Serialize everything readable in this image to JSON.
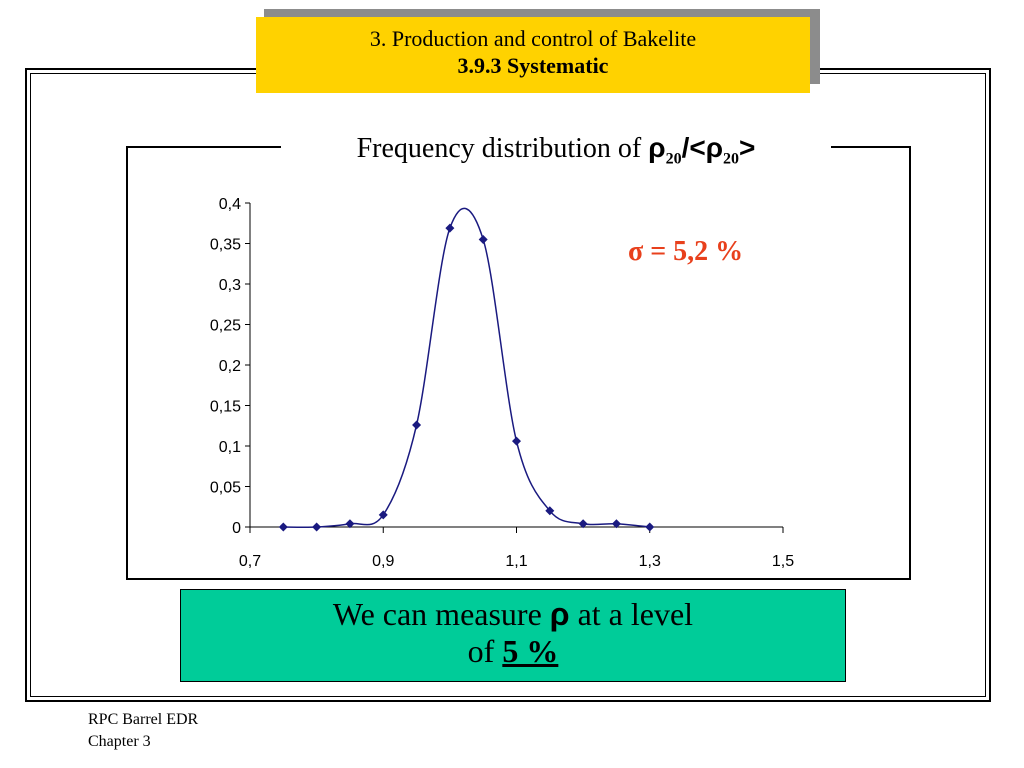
{
  "header": {
    "title_line1": "3. Production and control of  Bakelite",
    "title_line2": "3.9.3 Systematic"
  },
  "chart_title": {
    "prefix": "Frequency distribution of ",
    "rho": "ρ",
    "sub": "20",
    "slash": "/<",
    "rho2": "ρ",
    "sub2": "20",
    "suffix": ">"
  },
  "annotation": "σ = 5,2 %",
  "note": {
    "line1_prefix": "We can measure ",
    "rho": "ρ",
    "line1_suffix": " at a level",
    "line2_prefix": "of  ",
    "value": "5 %"
  },
  "footer": {
    "line1": "RPC Barrel EDR",
    "line2": "Chapter 3"
  },
  "colors": {
    "title_bg": "#ffd200",
    "note_bg": "#00cc99",
    "series": "#1a1a80",
    "annotation": "#e8401c"
  },
  "chart_data": {
    "type": "scatter",
    "title": "Frequency distribution of ρ20/<ρ20>",
    "xlim": [
      0.7,
      1.5
    ],
    "ylim": [
      0,
      0.4
    ],
    "x_ticks": [
      0.7,
      0.9,
      1.1,
      1.3,
      1.5
    ],
    "x_tick_labels": [
      "0,7",
      "0,9",
      "1,1",
      "1,3",
      "1,5"
    ],
    "y_ticks": [
      0,
      0.05,
      0.1,
      0.15,
      0.2,
      0.25,
      0.3,
      0.35,
      0.4
    ],
    "y_tick_labels": [
      "0",
      "0,05",
      "0,1",
      "0,15",
      "0,2",
      "0,25",
      "0,3",
      "0,35",
      "0,4"
    ],
    "grid": false,
    "smooth_line": true,
    "series": [
      {
        "x": [
          0.75,
          0.8,
          0.85,
          0.9,
          0.95,
          1.0,
          1.05,
          1.1,
          1.15,
          1.2,
          1.25,
          1.3
        ],
        "y": [
          0,
          0,
          0.004,
          0.015,
          0.126,
          0.369,
          0.355,
          0.106,
          0.02,
          0.004,
          0.004,
          0
        ]
      }
    ]
  }
}
